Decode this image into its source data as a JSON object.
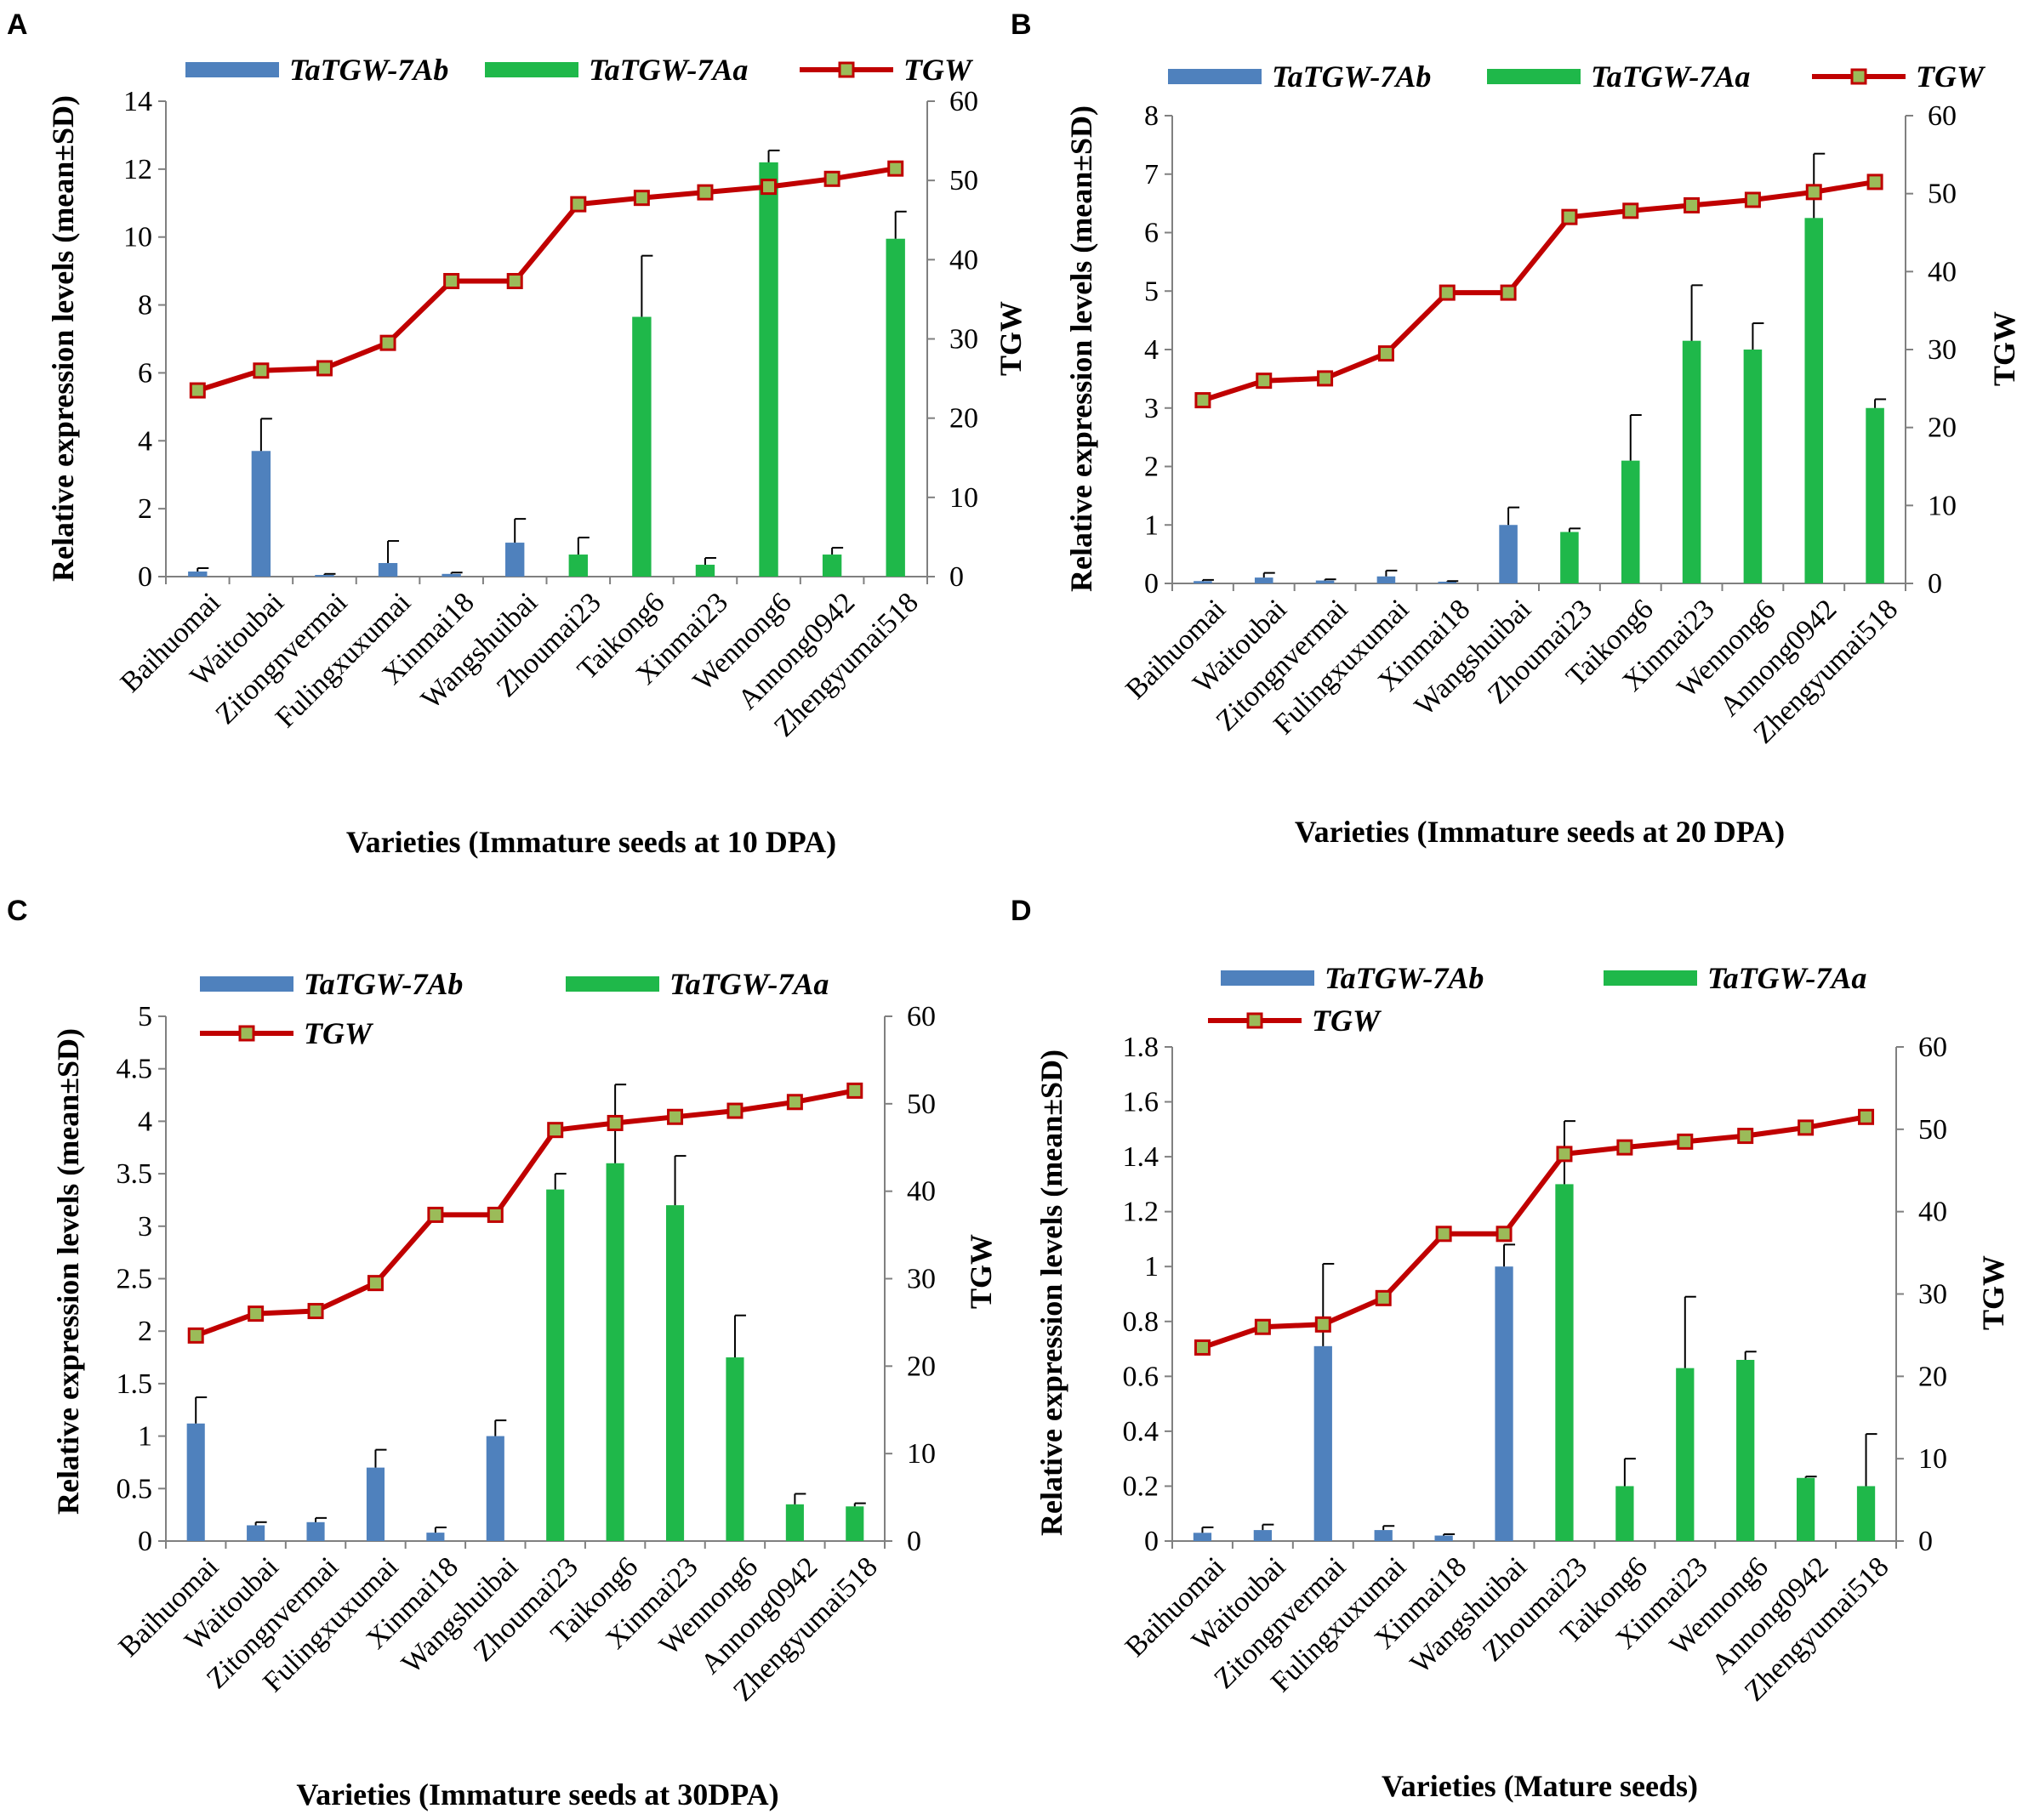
{
  "colors": {
    "ab": "#4F81BD",
    "aa": "#1FB84A",
    "tgw_line": "#C00000",
    "tgw_marker_fill": "#9BBB59",
    "axis": "#808080",
    "err": "#000000"
  },
  "chart_data": [
    {
      "panel": "A",
      "type": "bar",
      "xlabel": "Varieties (Immature seeds at 10 DPA)",
      "ylabel": "Relative expression levels (mean±SD)",
      "y2label": "TGW",
      "ylim": [
        0,
        14
      ],
      "yticks": [
        0,
        2,
        4,
        6,
        8,
        10,
        12,
        14
      ],
      "y2lim": [
        0,
        60
      ],
      "y2ticks": [
        0,
        10,
        20,
        30,
        40,
        50,
        60
      ],
      "legend": [
        "TaTGW-7Ab",
        "TaTGW-7Aa",
        "TGW"
      ],
      "categories": [
        "Baihuomai",
        "Waitoubai",
        "Zitongnvermai",
        "Fulingxuxumai",
        "Xinmai18",
        "Wangshuibai",
        "Zhoumai23",
        "Taikong6",
        "Xinmai23",
        "Wennong6",
        "Annong0942",
        "Zhengyumai518"
      ],
      "series": [
        {
          "name": "TaTGW-7Ab",
          "values": [
            0.15,
            3.7,
            0.05,
            0.4,
            0.08,
            1.0,
            0,
            0,
            0,
            0,
            0,
            0
          ],
          "errors": [
            0.1,
            0.95,
            0.03,
            0.65,
            0.04,
            0.7,
            0,
            0,
            0,
            0,
            0,
            0
          ]
        },
        {
          "name": "TaTGW-7Aa",
          "values": [
            0,
            0,
            0,
            0,
            0,
            0,
            0.65,
            7.65,
            0.35,
            12.2,
            0.65,
            9.95
          ],
          "errors": [
            0,
            0,
            0,
            0,
            0,
            0,
            0.5,
            1.8,
            0.2,
            0.35,
            0.2,
            0.8
          ]
        },
        {
          "name": "TGW",
          "axis": "secondary",
          "values": [
            23.5,
            26.0,
            26.3,
            29.5,
            37.3,
            37.3,
            47.0,
            47.8,
            48.5,
            49.2,
            50.2,
            51.5
          ]
        }
      ]
    },
    {
      "panel": "B",
      "type": "bar",
      "xlabel": "Varieties (Immature seeds at 20 DPA)",
      "ylabel": "Relative expression levels (mean±SD)",
      "y2label": "TGW",
      "ylim": [
        0,
        8
      ],
      "yticks": [
        0,
        1,
        2,
        3,
        4,
        5,
        6,
        7,
        8
      ],
      "y2lim": [
        0,
        60
      ],
      "y2ticks": [
        0,
        10,
        20,
        30,
        40,
        50,
        60
      ],
      "legend": [
        "TaTGW-7Ab",
        "TaTGW-7Aa",
        "TGW"
      ],
      "categories": [
        "Baihuomai",
        "Waitoubai",
        "Zitongnvermai",
        "Fulingxuxumai",
        "Xinmai18",
        "Wangshuibai",
        "Zhoumai23",
        "Taikong6",
        "Xinmai23",
        "Wennong6",
        "Annong0942",
        "Zhengyumai518"
      ],
      "series": [
        {
          "name": "TaTGW-7Ab",
          "values": [
            0.04,
            0.1,
            0.05,
            0.12,
            0.03,
            1.0,
            0,
            0,
            0,
            0,
            0,
            0
          ],
          "errors": [
            0.02,
            0.08,
            0.02,
            0.1,
            0.01,
            0.3,
            0,
            0,
            0,
            0,
            0,
            0
          ]
        },
        {
          "name": "TaTGW-7Aa",
          "values": [
            0,
            0,
            0,
            0,
            0,
            0,
            0.88,
            2.1,
            4.15,
            4.0,
            6.25,
            3.0
          ],
          "errors": [
            0,
            0,
            0,
            0,
            0,
            0,
            0.06,
            0.78,
            0.95,
            0.45,
            1.1,
            0.15
          ]
        },
        {
          "name": "TGW",
          "axis": "secondary",
          "values": [
            23.5,
            26.0,
            26.3,
            29.5,
            37.3,
            37.3,
            47.0,
            47.8,
            48.5,
            49.2,
            50.2,
            51.5
          ]
        }
      ]
    },
    {
      "panel": "C",
      "type": "bar",
      "xlabel": "Varieties (Immature seeds at 30DPA)",
      "ylabel": "Relative expression levels (mean±SD)",
      "y2label": "TGW",
      "ylim": [
        0,
        5
      ],
      "yticks": [
        0,
        0.5,
        1,
        1.5,
        2,
        2.5,
        3,
        3.5,
        4,
        4.5,
        5
      ],
      "y2lim": [
        0,
        60
      ],
      "y2ticks": [
        0,
        10,
        20,
        30,
        40,
        50,
        60
      ],
      "legend": [
        "TaTGW-7Ab",
        "TaTGW-7Aa",
        "TGW"
      ],
      "categories": [
        "Baihuomai",
        "Waitoubai",
        "Zitongnvermai",
        "Fulingxuxumai",
        "Xinmai18",
        "Wangshuibai",
        "Zhoumai23",
        "Taikong6",
        "Xinmai23",
        "Wennong6",
        "Annong0942",
        "Zhengyumai518"
      ],
      "series": [
        {
          "name": "TaTGW-7Ab",
          "values": [
            1.12,
            0.15,
            0.18,
            0.7,
            0.08,
            1.0,
            0,
            0,
            0,
            0,
            0,
            0
          ],
          "errors": [
            0.25,
            0.03,
            0.04,
            0.17,
            0.05,
            0.15,
            0,
            0,
            0,
            0,
            0,
            0
          ]
        },
        {
          "name": "TaTGW-7Aa",
          "values": [
            0,
            0,
            0,
            0,
            0,
            0,
            3.35,
            3.6,
            3.2,
            1.75,
            0.35,
            0.33
          ],
          "errors": [
            0,
            0,
            0,
            0,
            0,
            0,
            0.15,
            0.75,
            0.47,
            0.4,
            0.1,
            0.03
          ]
        },
        {
          "name": "TGW",
          "axis": "secondary",
          "values": [
            23.5,
            26.0,
            26.3,
            29.5,
            37.3,
            37.3,
            47.0,
            47.8,
            48.5,
            49.2,
            50.2,
            51.5
          ]
        }
      ]
    },
    {
      "panel": "D",
      "type": "bar",
      "xlabel": "Varieties  (Mature seeds)",
      "ylabel": "Relative expression levels (mean±SD)",
      "y2label": "TGW",
      "ylim": [
        0,
        1.8
      ],
      "yticks": [
        0,
        0.2,
        0.4,
        0.6,
        0.8,
        1,
        1.2,
        1.4,
        1.6,
        1.8
      ],
      "y2lim": [
        0,
        60
      ],
      "y2ticks": [
        0,
        10,
        20,
        30,
        40,
        50,
        60
      ],
      "legend": [
        "TaTGW-7Ab",
        "TaTGW-7Aa",
        "TGW"
      ],
      "categories": [
        "Baihuomai",
        "Waitoubai",
        "Zitongnvermai",
        "Fulingxuxumai",
        "Xinmai18",
        "Wangshuibai",
        "Zhoumai23",
        "Taikong6",
        "Xinmai23",
        "Wennong6",
        "Annong0942",
        "Zhengyumai518"
      ],
      "series": [
        {
          "name": "TaTGW-7Ab",
          "values": [
            0.03,
            0.04,
            0.71,
            0.04,
            0.02,
            1.0,
            0,
            0,
            0,
            0,
            0,
            0
          ],
          "errors": [
            0.02,
            0.02,
            0.3,
            0.015,
            0.005,
            0.08,
            0,
            0,
            0,
            0,
            0,
            0
          ]
        },
        {
          "name": "TaTGW-7Aa",
          "values": [
            0,
            0,
            0,
            0,
            0,
            0,
            1.3,
            0.2,
            0.63,
            0.66,
            0.23,
            0.2
          ],
          "errors": [
            0,
            0,
            0,
            0,
            0,
            0,
            0.23,
            0.1,
            0.26,
            0.03,
            0.005,
            0.19
          ]
        },
        {
          "name": "TGW",
          "axis": "secondary",
          "values": [
            23.5,
            26.0,
            26.3,
            29.5,
            37.3,
            37.3,
            47.0,
            47.8,
            48.5,
            49.2,
            50.2,
            51.5
          ]
        }
      ]
    }
  ]
}
